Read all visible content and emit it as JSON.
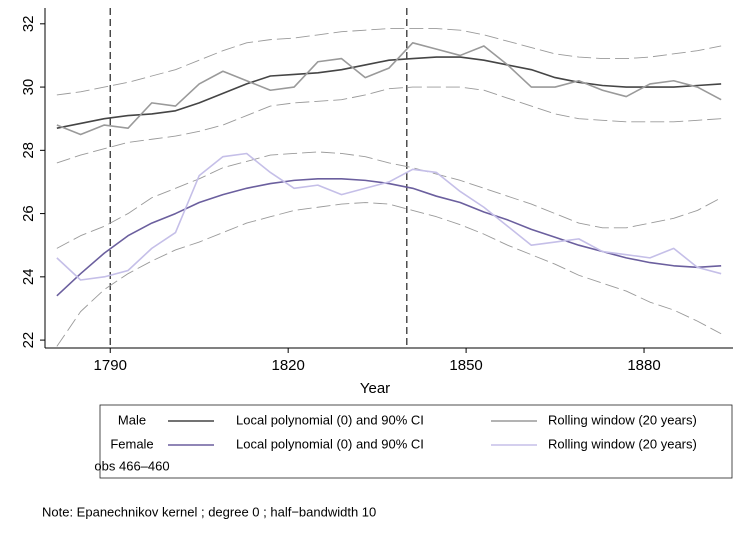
{
  "chart_data": {
    "type": "line",
    "x_label": "Year",
    "x": [
      1781,
      1785,
      1789,
      1793,
      1797,
      1801,
      1805,
      1809,
      1813,
      1817,
      1821,
      1825,
      1829,
      1833,
      1837,
      1841,
      1845,
      1849,
      1853,
      1857,
      1861,
      1865,
      1869,
      1873,
      1877,
      1881,
      1885,
      1889,
      1893
    ],
    "xlim": [
      1779,
      1895
    ],
    "xticks": [
      1790,
      1820,
      1850,
      1880
    ],
    "ylim": [
      21.75,
      32.5
    ],
    "yticks": [
      22,
      24,
      26,
      28,
      30,
      32
    ],
    "vlines": [
      1790,
      1840
    ],
    "ci_color": "#9a9a9a",
    "groups": [
      {
        "label": "Male",
        "series": [
          {
            "name": "Local polynomial (0) and 90% CI",
            "color": "#454545",
            "values": [
              28.7,
              28.85,
              29.0,
              29.1,
              29.15,
              29.25,
              29.5,
              29.8,
              30.1,
              30.35,
              30.4,
              30.45,
              30.55,
              30.7,
              30.85,
              30.9,
              30.95,
              30.95,
              30.85,
              30.7,
              30.55,
              30.3,
              30.15,
              30.05,
              30.0,
              30.0,
              30.0,
              30.05,
              30.1
            ],
            "ci_upper": [
              29.75,
              29.85,
              30.0,
              30.15,
              30.35,
              30.55,
              30.85,
              31.15,
              31.4,
              31.5,
              31.55,
              31.65,
              31.75,
              31.8,
              31.85,
              31.85,
              31.85,
              31.8,
              31.65,
              31.45,
              31.25,
              31.05,
              30.95,
              30.9,
              30.9,
              30.95,
              31.05,
              31.15,
              31.3
            ],
            "ci_lower": [
              27.6,
              27.85,
              28.05,
              28.25,
              28.35,
              28.45,
              28.6,
              28.8,
              29.1,
              29.4,
              29.5,
              29.55,
              29.6,
              29.75,
              29.95,
              30.0,
              30.0,
              30.0,
              29.9,
              29.65,
              29.4,
              29.15,
              29.0,
              28.95,
              28.9,
              28.9,
              28.9,
              28.95,
              29.0
            ]
          },
          {
            "name": "Rolling window (20 years)",
            "color": "#9a9a9a",
            "values": [
              28.8,
              28.5,
              28.8,
              28.7,
              29.5,
              29.4,
              30.1,
              30.5,
              30.2,
              29.9,
              30.0,
              30.8,
              30.9,
              30.3,
              30.6,
              31.4,
              31.2,
              31.0,
              31.3,
              30.7,
              30.0,
              30.0,
              30.2,
              29.9,
              29.7,
              30.1,
              30.2,
              30.0,
              29.6
            ]
          }
        ]
      },
      {
        "label": "Female",
        "series": [
          {
            "name": "Local polynomial (0) and 90% CI",
            "color": "#6b5f9e",
            "values": [
              23.4,
              24.1,
              24.75,
              25.3,
              25.7,
              26.0,
              26.35,
              26.6,
              26.8,
              26.95,
              27.05,
              27.1,
              27.1,
              27.05,
              26.95,
              26.8,
              26.55,
              26.35,
              26.05,
              25.8,
              25.5,
              25.25,
              25.0,
              24.8,
              24.6,
              24.45,
              24.35,
              24.3,
              24.35
            ],
            "ci_upper": [
              24.9,
              25.3,
              25.6,
              26.0,
              26.5,
              26.8,
              27.1,
              27.45,
              27.65,
              27.85,
              27.9,
              27.95,
              27.9,
              27.8,
              27.6,
              27.45,
              27.25,
              27.05,
              26.8,
              26.55,
              26.3,
              26.0,
              25.7,
              25.55,
              25.55,
              25.7,
              25.85,
              26.1,
              26.5
            ],
            "ci_lower": [
              21.8,
              22.9,
              23.6,
              24.1,
              24.5,
              24.85,
              25.1,
              25.4,
              25.7,
              25.9,
              26.1,
              26.2,
              26.3,
              26.35,
              26.3,
              26.1,
              25.9,
              25.65,
              25.35,
              25.0,
              24.7,
              24.4,
              24.05,
              23.8,
              23.55,
              23.2,
              22.95,
              22.6,
              22.2
            ]
          },
          {
            "name": "Rolling window (20 years)",
            "color": "#c5bfe8",
            "values": [
              24.6,
              23.9,
              24.0,
              24.2,
              24.9,
              25.4,
              27.2,
              27.8,
              27.9,
              27.3,
              26.8,
              26.9,
              26.6,
              26.8,
              27.0,
              27.4,
              27.3,
              26.7,
              26.2,
              25.6,
              25.0,
              25.1,
              25.2,
              24.8,
              24.7,
              24.6,
              24.9,
              24.3,
              24.1
            ]
          }
        ]
      }
    ],
    "legend_note": "obs 466–460",
    "note": "Note: Epanechnikov kernel ; degree 0 ; half−bandwidth 10"
  }
}
